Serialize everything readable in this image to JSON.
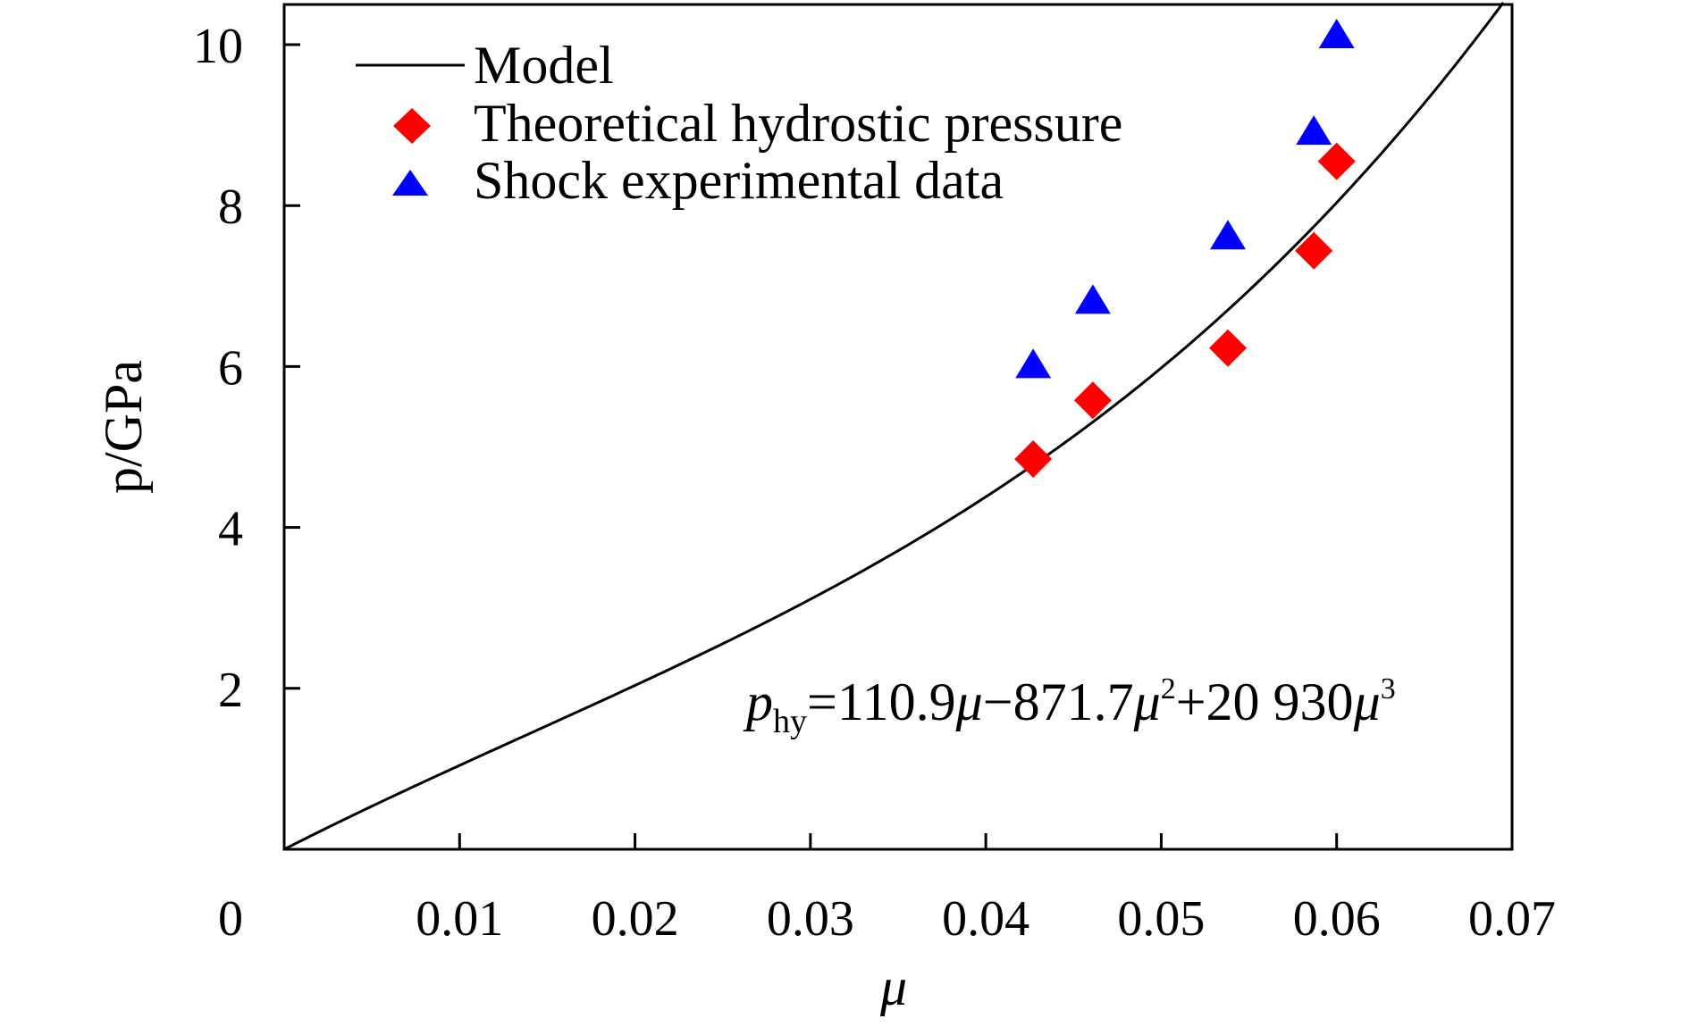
{
  "chart_data": {
    "type": "scatter",
    "xlabel": "μ",
    "ylabel": "p/GPa",
    "xlim": [
      0,
      0.07
    ],
    "ylim": [
      0,
      10.5
    ],
    "x_ticks": [
      0.01,
      0.02,
      0.03,
      0.04,
      0.05,
      0.06,
      0.07
    ],
    "x_tick_labels": [
      "0.01",
      "0.02",
      "0.03",
      "0.04",
      "0.05",
      "0.06",
      "0.07"
    ],
    "y_ticks": [
      2,
      4,
      6,
      8,
      10
    ],
    "y_tick_labels": [
      "2",
      "4",
      "6",
      "8",
      "10"
    ],
    "origin_label": "0",
    "grid": false,
    "legend_position": "top-left",
    "annotation": {
      "p": "p",
      "sub": "hy",
      "eq1": "=110.9",
      "mu1": "μ",
      "eq2": "−871.7",
      "mu2": "μ",
      "sup2": "2",
      "eq3": "+20 930",
      "mu3": "μ",
      "sup3": "3"
    },
    "series": [
      {
        "name": "Model",
        "kind": "line",
        "color": "#000000",
        "coefficients": [
          110.9,
          -871.7,
          20930
        ],
        "x_range": [
          0,
          0.0695
        ]
      },
      {
        "name": "Theoretical hydrostic pressure",
        "kind": "scatter",
        "marker": "diamond",
        "color": "#ff0000",
        "x": [
          0.0427,
          0.0461,
          0.0538,
          0.0587,
          0.06
        ],
        "y": [
          4.85,
          5.58,
          6.23,
          7.44,
          8.55
        ]
      },
      {
        "name": "Shock experimental data",
        "kind": "scatter",
        "marker": "triangle",
        "color": "#0000ff",
        "x": [
          0.0427,
          0.0461,
          0.0538,
          0.0587,
          0.06
        ],
        "y": [
          6.0,
          6.8,
          7.6,
          8.9,
          10.1
        ]
      }
    ]
  }
}
